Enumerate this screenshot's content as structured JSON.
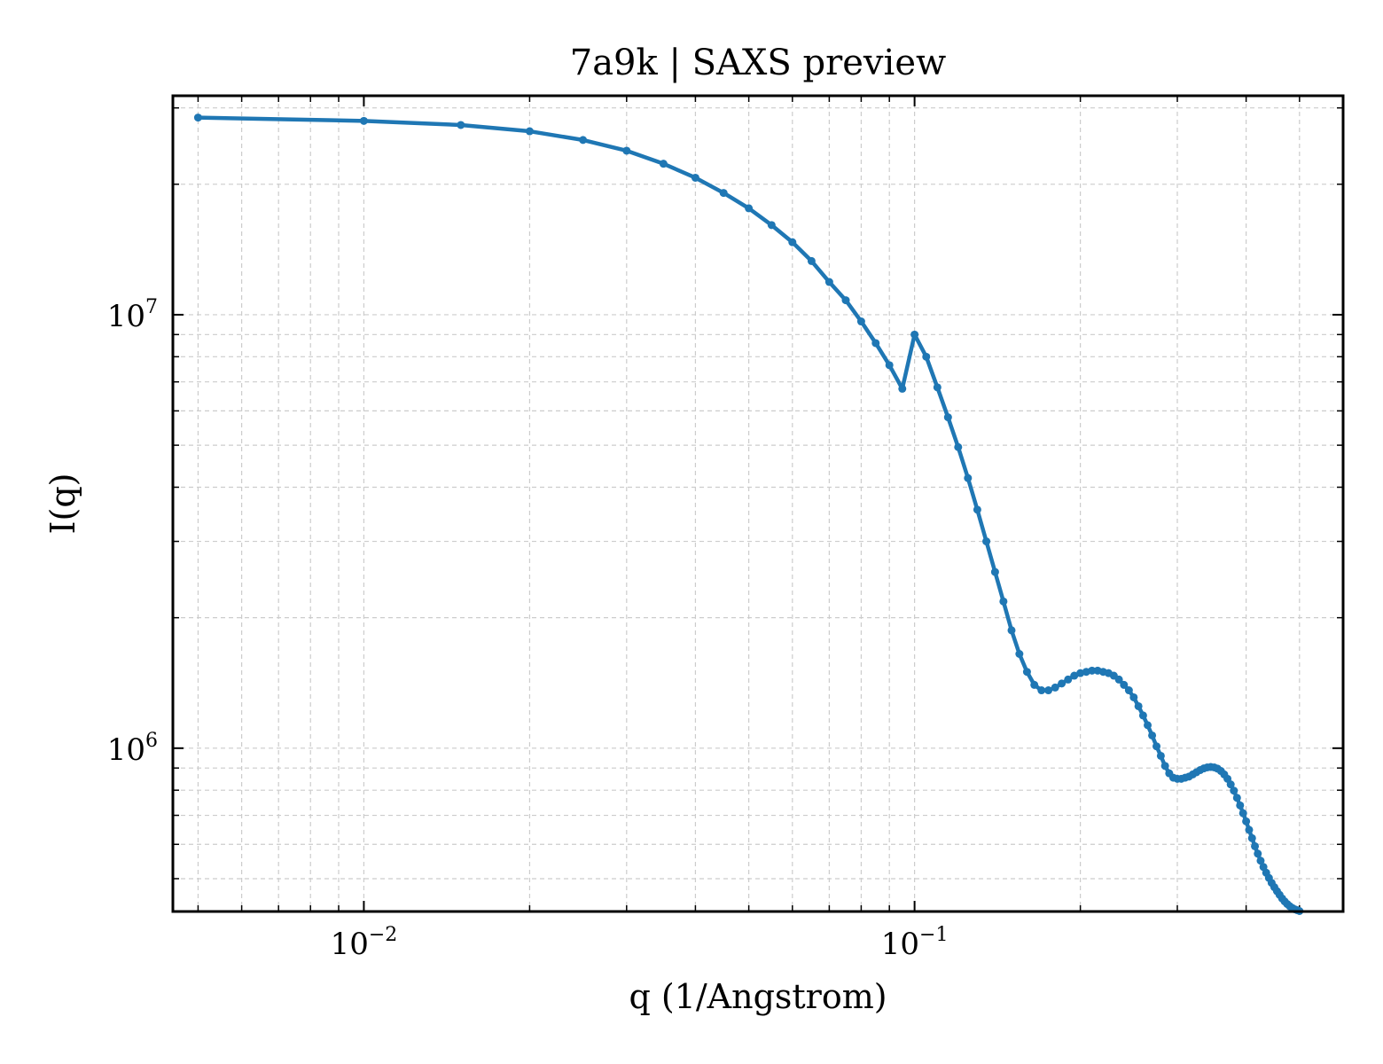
{
  "chart_data": {
    "type": "line",
    "title": "7a9k | SAXS preview",
    "xlabel": "q (1/Angstrom)",
    "ylabel": "I(q)",
    "xscale": "log",
    "yscale": "log",
    "xlim": [
      0.0045,
      0.6
    ],
    "ylim": [
      420000,
      32000000
    ],
    "grid": true,
    "legend": "none",
    "x_ticks": [
      {
        "value": 0.01,
        "base": "10",
        "exp": "−2"
      },
      {
        "value": 0.1,
        "base": "10",
        "exp": "−1"
      }
    ],
    "y_ticks": [
      {
        "value": 1000000,
        "base": "10",
        "exp": "6"
      },
      {
        "value": 10000000,
        "base": "10",
        "exp": "7"
      }
    ],
    "series": [
      {
        "color": "#1f77b4",
        "x": [
          0.005,
          0.01,
          0.015,
          0.02,
          0.025,
          0.03,
          0.035,
          0.04,
          0.045,
          0.05,
          0.055,
          0.06,
          0.065,
          0.07,
          0.075,
          0.08,
          0.085,
          0.09,
          0.095,
          0.1,
          0.105,
          0.11,
          0.115,
          0.12,
          0.125,
          0.13,
          0.135,
          0.14,
          0.145,
          0.15,
          0.155,
          0.16,
          0.165,
          0.17,
          0.175,
          0.18,
          0.185,
          0.19,
          0.195,
          0.2,
          0.205,
          0.21,
          0.215,
          0.22,
          0.225,
          0.23,
          0.235,
          0.24,
          0.245,
          0.25,
          0.255,
          0.26,
          0.265,
          0.27,
          0.275,
          0.28,
          0.285,
          0.29,
          0.295,
          0.3,
          0.305,
          0.31,
          0.315,
          0.32,
          0.325,
          0.33,
          0.335,
          0.34,
          0.345,
          0.35,
          0.355,
          0.36,
          0.365,
          0.37,
          0.375,
          0.38,
          0.385,
          0.39,
          0.395,
          0.4,
          0.405,
          0.41,
          0.415,
          0.42,
          0.425,
          0.43,
          0.435,
          0.44,
          0.445,
          0.45,
          0.455,
          0.46,
          0.465,
          0.47,
          0.475,
          0.48,
          0.485,
          0.49,
          0.495,
          0.5
        ],
        "y": [
          28500000,
          28000000,
          27400000,
          26500000,
          25300000,
          23900000,
          22300000,
          20700000,
          19100000,
          17600000,
          16100000,
          14700000,
          13300000,
          11900000,
          10800000,
          9650000,
          8600000,
          7650000,
          6750000,
          9000000,
          8000000,
          6800000,
          5800000,
          4950000,
          4200000,
          3550000,
          3000000,
          2550000,
          2180000,
          1870000,
          1650000,
          1500000,
          1400000,
          1360000,
          1360000,
          1380000,
          1410000,
          1440000,
          1470000,
          1490000,
          1500000,
          1510000,
          1510000,
          1500000,
          1490000,
          1470000,
          1440000,
          1400000,
          1360000,
          1310000,
          1250000,
          1190000,
          1130000,
          1070000,
          1010000,
          960000,
          910000,
          875000,
          855000,
          850000,
          850000,
          855000,
          860000,
          870000,
          880000,
          890000,
          898000,
          903000,
          905000,
          903000,
          897000,
          886000,
          870000,
          850000,
          825000,
          798000,
          768000,
          738000,
          708000,
          678000,
          648000,
          620000,
          594000,
          571000,
          550000,
          532000,
          516000,
          502000,
          489000,
          478000,
          468000,
          459000,
          450000,
          443000,
          437000,
          432000,
          428000,
          425000,
          423000,
          421000
        ]
      }
    ]
  }
}
